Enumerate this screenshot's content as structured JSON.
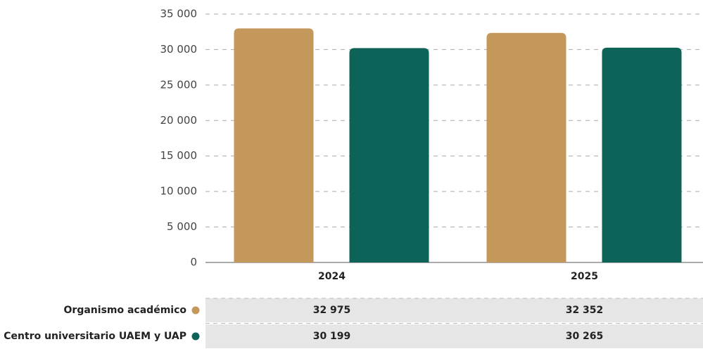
{
  "chart_data": {
    "type": "bar",
    "categories": [
      "2024",
      "2025"
    ],
    "series": [
      {
        "name": "Organismo académico",
        "color": "#c4975a",
        "values": [
          32975,
          32352
        ],
        "value_labels": [
          "32 975",
          "32 352"
        ]
      },
      {
        "name": "Centro universitario UAEM y UAP",
        "color": "#0e6358",
        "values": [
          30199,
          30265
        ],
        "value_labels": [
          "30 199",
          "30 265"
        ]
      }
    ],
    "ylim": [
      0,
      35000
    ],
    "yticks": [
      0,
      {
        "value": 5000,
        "label": "5 000"
      },
      {
        "value": 10000,
        "label": "10 000"
      },
      {
        "value": 15000,
        "label": "15 000"
      },
      {
        "value": 20000,
        "label": "20 000"
      },
      {
        "value": 25000,
        "label": "25 000"
      },
      {
        "value": 30000,
        "label": "30 000"
      },
      {
        "value": 35000,
        "label": "35 000"
      }
    ],
    "grid": true
  }
}
